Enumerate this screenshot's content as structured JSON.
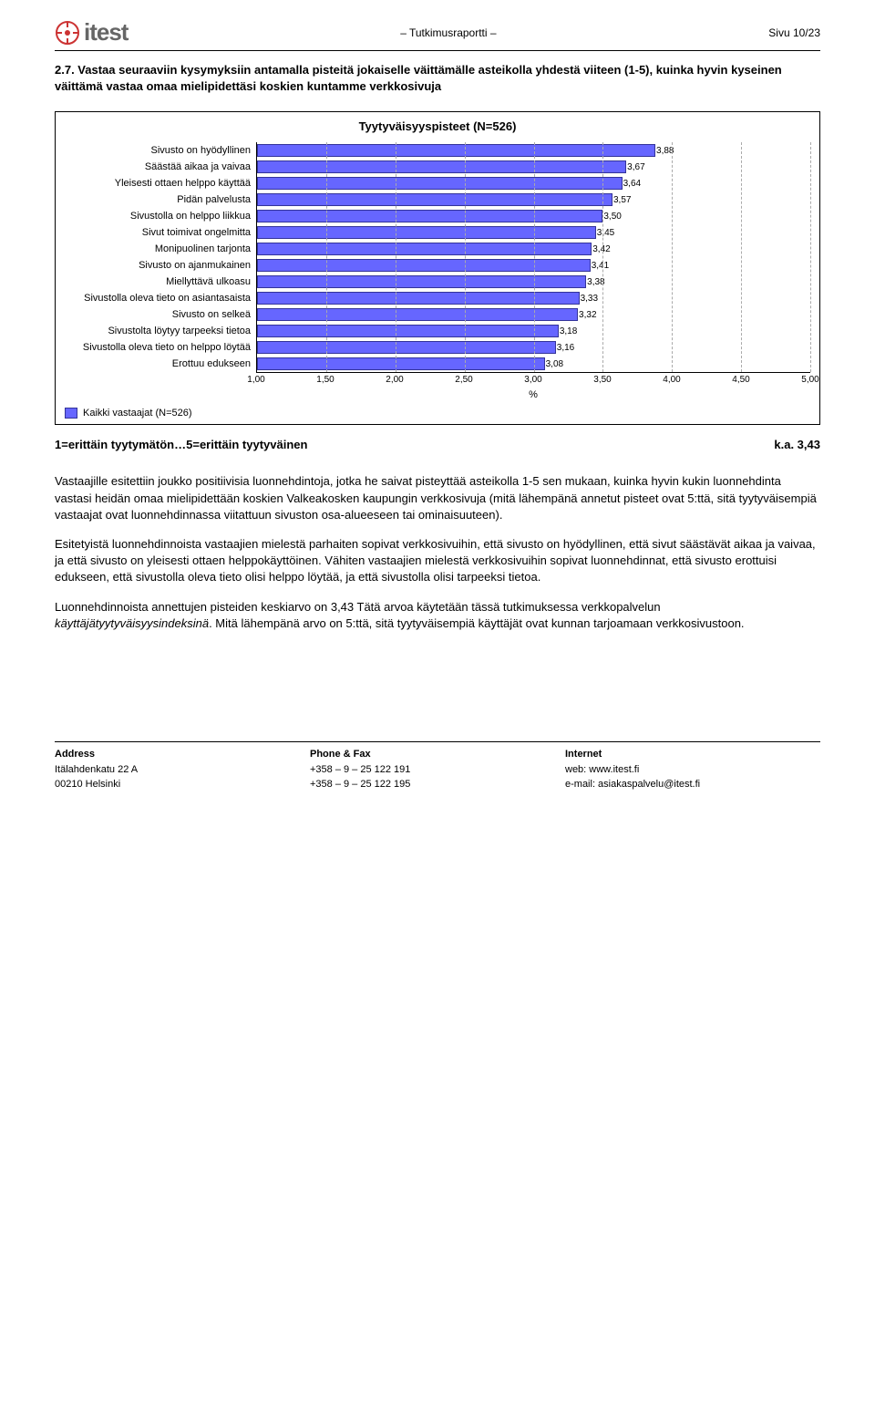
{
  "header": {
    "logo_text": "itest",
    "center": "– Tutkimusraportti –",
    "right": "Sivu 10/23"
  },
  "question": "2.7. Vastaa seuraaviin kysymyksiin antamalla pisteitä jokaiselle väittämälle asteikolla yhdestä viiteen (1-5), kuinka hyvin kyseinen väittämä vastaa omaa mielipidettäsi koskien kuntamme verkkosivuja",
  "chart": {
    "title": "Tyytyväisyyspisteet (N=526)",
    "x_axis_label": "%",
    "x_min": 1.0,
    "x_max": 5.0,
    "x_ticks": [
      "1,00",
      "1,50",
      "2,00",
      "2,50",
      "3,00",
      "3,50",
      "4,00",
      "4,50",
      "5,00"
    ],
    "bar_color": "#6666ff",
    "bar_border": "#333399",
    "grid_color": "#aaaaaa",
    "items": [
      {
        "label": "Sivusto on hyödyllinen",
        "value": 3.88,
        "value_label": "3,88"
      },
      {
        "label": "Säästää aikaa ja vaivaa",
        "value": 3.67,
        "value_label": "3,67"
      },
      {
        "label": "Yleisesti ottaen helppo käyttää",
        "value": 3.64,
        "value_label": "3,64"
      },
      {
        "label": "Pidän palvelusta",
        "value": 3.57,
        "value_label": "3,57"
      },
      {
        "label": "Sivustolla on helppo liikkua",
        "value": 3.5,
        "value_label": "3,50"
      },
      {
        "label": "Sivut toimivat ongelmitta",
        "value": 3.45,
        "value_label": "3,45"
      },
      {
        "label": "Monipuolinen tarjonta",
        "value": 3.42,
        "value_label": "3,42"
      },
      {
        "label": "Sivusto on ajanmukainen",
        "value": 3.41,
        "value_label": "3,41"
      },
      {
        "label": "Miellyttävä ulkoasu",
        "value": 3.38,
        "value_label": "3,38"
      },
      {
        "label": "Sivustolla oleva tieto on asiantasaista",
        "value": 3.33,
        "value_label": "3,33"
      },
      {
        "label": "Sivusto on selkeä",
        "value": 3.32,
        "value_label": "3,32"
      },
      {
        "label": "Sivustolta löytyy tarpeeksi tietoa",
        "value": 3.18,
        "value_label": "3,18"
      },
      {
        "label": "Sivustolla oleva tieto on helppo löytää",
        "value": 3.16,
        "value_label": "3,16"
      },
      {
        "label": "Erottuu edukseen",
        "value": 3.08,
        "value_label": "3,08"
      }
    ],
    "legend": "Kaikki vastaajat (N=526)"
  },
  "scale": {
    "left": "1=erittäin tyytymätön…5=erittäin tyytyväinen",
    "right": "k.a. 3,43"
  },
  "paragraphs": [
    "Vastaajille esitettiin joukko positiivisia luonnehdintoja, jotka he saivat pisteyttää asteikolla 1-5 sen mukaan, kuinka hyvin kukin luonnehdinta vastasi heidän omaa mielipidettään koskien Valkeakosken kaupungin verkkosivuja (mitä lähempänä annetut pisteet ovat 5:ttä, sitä tyytyväisempiä vastaajat ovat luonnehdinnassa viitattuun sivuston osa-alueeseen tai ominaisuuteen).",
    "Esitetyistä luonnehdinnoista vastaajien mielestä parhaiten sopivat verkkosivuihin, että sivusto on hyödyllinen, että sivut säästävät aikaa ja vaivaa, ja että sivusto on yleisesti ottaen helppokäyttöinen. Vähiten vastaajien mielestä verkkosivuihin sopivat luonnehdinnat, että sivusto erottuisi edukseen, että sivustolla oleva tieto olisi helppo löytää, ja että sivustolla olisi tarpeeksi tietoa.",
    "Luonnehdinnoista annettujen pisteiden keskiarvo on 3,43 Tätä arvoa käytetään tässä tutkimuksessa verkkopalvelun <em>käyttäjätyytyväisyysindeksinä</em>. Mitä lähempänä arvo on 5:ttä, sitä tyytyväisempiä käyttäjät ovat kunnan tarjoamaan verkkosivustoon."
  ],
  "footer": {
    "col1": {
      "title": "Address",
      "lines": [
        "Itälahdenkatu 22 A",
        "00210 Helsinki"
      ]
    },
    "col2": {
      "title": "Phone & Fax",
      "lines": [
        "+358 – 9 – 25 122 191",
        "+358 – 9 – 25 122 195"
      ]
    },
    "col3": {
      "title": "Internet",
      "lines": [
        "web: www.itest.fi",
        "e-mail: asiakaspalvelu@itest.fi"
      ]
    }
  }
}
